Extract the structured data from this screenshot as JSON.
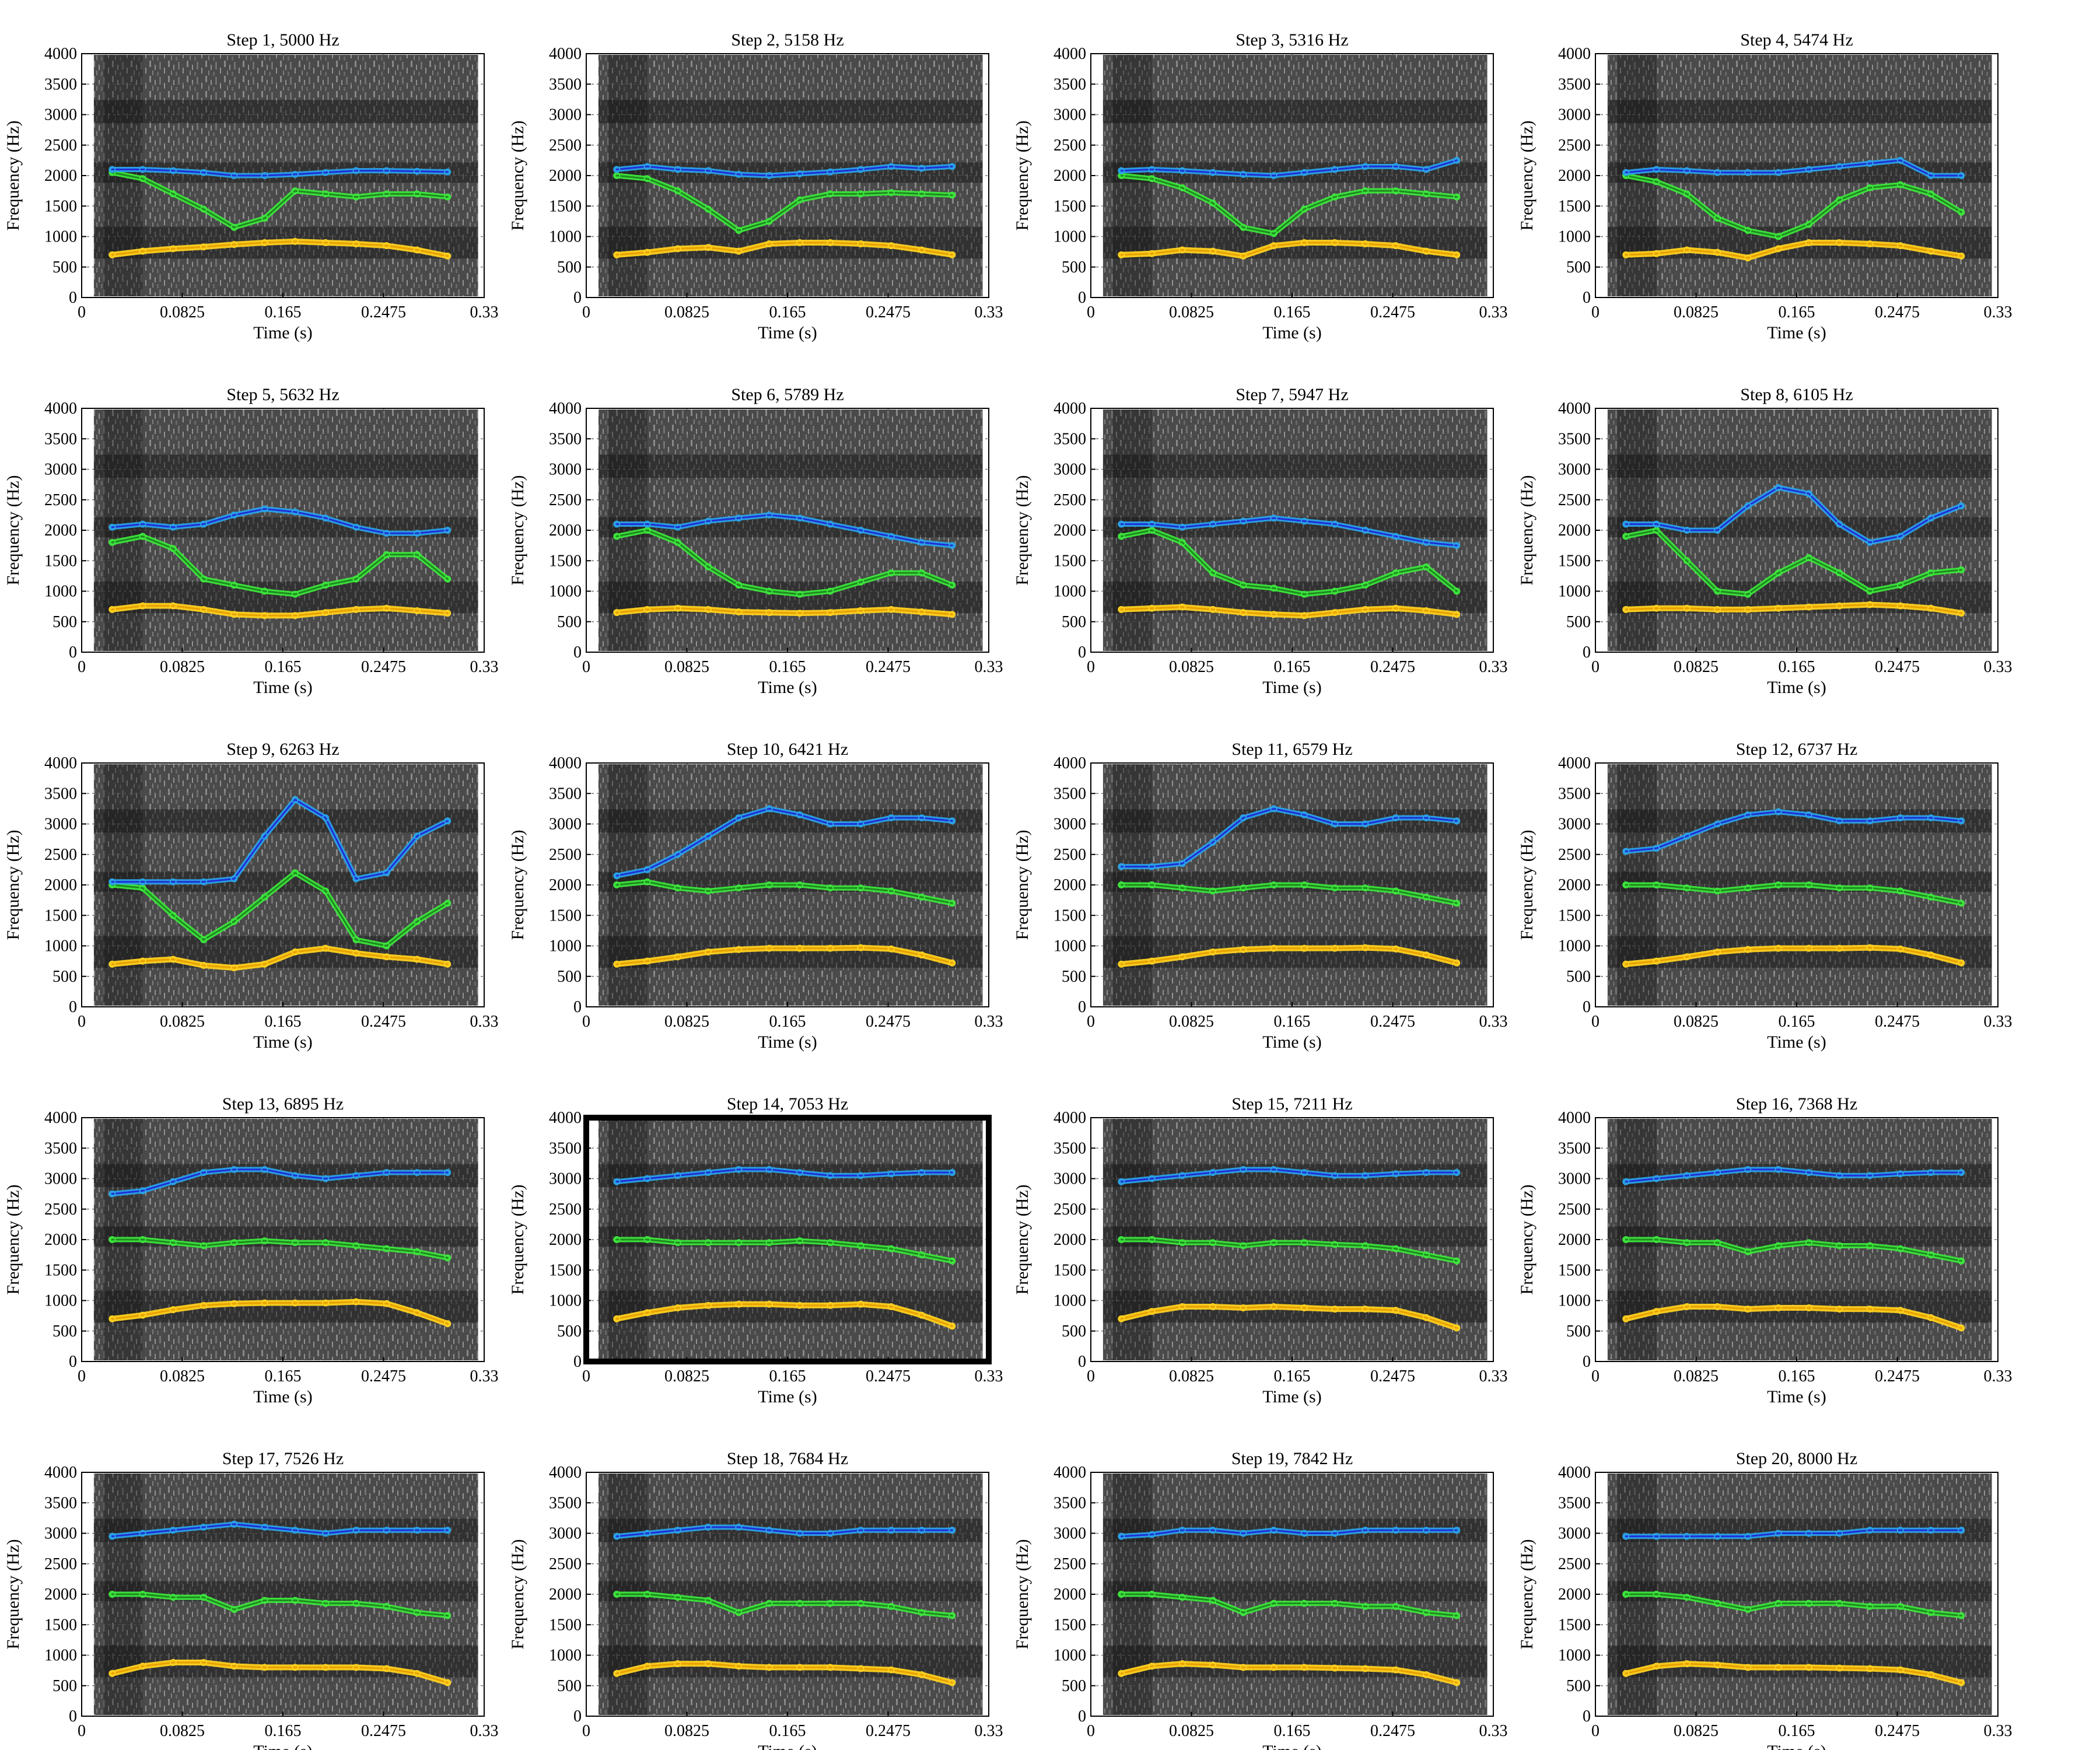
{
  "chart_data": {
    "type": "line",
    "layout": "5 rows x 4 columns of spectrogram panels",
    "xlabel": "Time (s)",
    "ylabel": "Frequency (Hz)",
    "xlim": [
      0,
      0.33
    ],
    "ylim": [
      0,
      4000
    ],
    "xticks": [
      "0",
      "0.0825",
      "0.165",
      "0.2475",
      "0.33"
    ],
    "yticks": [
      "0",
      "500",
      "1000",
      "1500",
      "2000",
      "2500",
      "3000",
      "3500",
      "4000"
    ],
    "grid": true,
    "highlighted_panel": "Step 14, 7053 Hz",
    "colors": {
      "F1": "#ffd21f",
      "F1_fit": "#e8a000",
      "F2": "#3ce83c",
      "F2_fit": "#1f8a1f",
      "F3": "#2aa3e8",
      "F3_fit": "#1f2fd6"
    },
    "panels": [
      {
        "title": "Step 1, 5000 Hz",
        "step": 1,
        "max_frequency_hz": 5000
      },
      {
        "title": "Step 2, 5158 Hz",
        "step": 2,
        "max_frequency_hz": 5158
      },
      {
        "title": "Step 3, 5316 Hz",
        "step": 3,
        "max_frequency_hz": 5316
      },
      {
        "title": "Step 4, 5474 Hz",
        "step": 4,
        "max_frequency_hz": 5474
      },
      {
        "title": "Step 5, 5632 Hz",
        "step": 5,
        "max_frequency_hz": 5632
      },
      {
        "title": "Step 6, 5789 Hz",
        "step": 6,
        "max_frequency_hz": 5789
      },
      {
        "title": "Step 7, 5947 Hz",
        "step": 7,
        "max_frequency_hz": 5947
      },
      {
        "title": "Step 8, 6105 Hz",
        "step": 8,
        "max_frequency_hz": 6105
      },
      {
        "title": "Step 9, 6263 Hz",
        "step": 9,
        "max_frequency_hz": 6263
      },
      {
        "title": "Step 10, 6421 Hz",
        "step": 10,
        "max_frequency_hz": 6421
      },
      {
        "title": "Step 11, 6579 Hz",
        "step": 11,
        "max_frequency_hz": 6579
      },
      {
        "title": "Step 12, 6737 Hz",
        "step": 12,
        "max_frequency_hz": 6737
      },
      {
        "title": "Step 13, 6895 Hz",
        "step": 13,
        "max_frequency_hz": 6895
      },
      {
        "title": "Step 14, 7053 Hz",
        "step": 14,
        "max_frequency_hz": 7053
      },
      {
        "title": "Step 15, 7211 Hz",
        "step": 15,
        "max_frequency_hz": 7211
      },
      {
        "title": "Step 16, 7368 Hz",
        "step": 16,
        "max_frequency_hz": 7368
      },
      {
        "title": "Step 17, 7526 Hz",
        "step": 17,
        "max_frequency_hz": 7526
      },
      {
        "title": "Step 18, 7684 Hz",
        "step": 18,
        "max_frequency_hz": 7684
      },
      {
        "title": "Step 19, 7842 Hz",
        "step": 19,
        "max_frequency_hz": 7842
      },
      {
        "title": "Step 20, 8000 Hz",
        "step": 20,
        "max_frequency_hz": 8000
      }
    ],
    "tracks": {
      "t": [
        0.025,
        0.05,
        0.075,
        0.1,
        0.125,
        0.15,
        0.175,
        0.2,
        0.225,
        0.25,
        0.275,
        0.3
      ],
      "step_1": {
        "F1": [
          700,
          760,
          800,
          830,
          870,
          900,
          920,
          900,
          880,
          850,
          780,
          680
        ],
        "F2": [
          2050,
          1950,
          1700,
          1450,
          1150,
          1300,
          1750,
          1700,
          1650,
          1700,
          1700,
          1650
        ],
        "F3": [
          2100,
          2100,
          2080,
          2050,
          2000,
          2000,
          2020,
          2050,
          2080,
          2080,
          2070,
          2060
        ]
      },
      "step_2": {
        "F1": [
          700,
          740,
          800,
          820,
          760,
          880,
          900,
          900,
          880,
          850,
          780,
          700
        ],
        "F2": [
          2000,
          1950,
          1750,
          1450,
          1100,
          1250,
          1600,
          1700,
          1700,
          1720,
          1700,
          1680
        ],
        "F3": [
          2100,
          2150,
          2100,
          2080,
          2020,
          2000,
          2030,
          2060,
          2100,
          2150,
          2120,
          2150
        ]
      },
      "step_3": {
        "F1": [
          700,
          720,
          780,
          760,
          680,
          850,
          900,
          900,
          880,
          850,
          760,
          700
        ],
        "F2": [
          2000,
          1950,
          1800,
          1550,
          1150,
          1050,
          1450,
          1650,
          1750,
          1750,
          1700,
          1650
        ],
        "F3": [
          2080,
          2100,
          2080,
          2050,
          2020,
          2000,
          2050,
          2100,
          2150,
          2150,
          2100,
          2250
        ]
      },
      "step_4": {
        "F1": [
          700,
          720,
          780,
          740,
          650,
          800,
          900,
          900,
          880,
          850,
          760,
          680
        ],
        "F2": [
          2000,
          1900,
          1700,
          1300,
          1100,
          1000,
          1200,
          1600,
          1800,
          1850,
          1700,
          1400
        ],
        "F3": [
          2050,
          2100,
          2080,
          2050,
          2050,
          2050,
          2100,
          2150,
          2200,
          2250,
          2000,
          2000
        ]
      },
      "step_5": {
        "F1": [
          700,
          760,
          760,
          700,
          620,
          600,
          600,
          650,
          700,
          720,
          680,
          640
        ],
        "F2": [
          1800,
          1900,
          1700,
          1200,
          1100,
          1000,
          950,
          1100,
          1200,
          1600,
          1600,
          1200
        ],
        "F3": [
          2050,
          2100,
          2050,
          2100,
          2250,
          2350,
          2300,
          2200,
          2050,
          1950,
          1950,
          2000
        ]
      },
      "step_6": {
        "F1": [
          650,
          700,
          720,
          700,
          660,
          650,
          640,
          650,
          680,
          700,
          660,
          620
        ],
        "F2": [
          1900,
          2000,
          1800,
          1400,
          1100,
          1000,
          950,
          1000,
          1150,
          1300,
          1300,
          1100
        ],
        "F3": [
          2100,
          2100,
          2050,
          2150,
          2200,
          2250,
          2200,
          2100,
          2000,
          1900,
          1800,
          1750
        ]
      },
      "step_7": {
        "F1": [
          700,
          720,
          740,
          700,
          650,
          620,
          600,
          650,
          700,
          720,
          680,
          620
        ],
        "F2": [
          1900,
          2000,
          1800,
          1300,
          1100,
          1050,
          950,
          1000,
          1100,
          1300,
          1400,
          1000
        ],
        "F3": [
          2100,
          2100,
          2050,
          2100,
          2150,
          2200,
          2150,
          2100,
          2000,
          1900,
          1800,
          1750
        ]
      },
      "step_8": {
        "F1": [
          700,
          720,
          720,
          700,
          700,
          720,
          740,
          760,
          780,
          760,
          720,
          640
        ],
        "F2": [
          1900,
          2000,
          1500,
          1000,
          950,
          1300,
          1550,
          1300,
          1000,
          1100,
          1300,
          1350
        ],
        "F3": [
          2100,
          2100,
          2000,
          2000,
          2400,
          2700,
          2600,
          2100,
          1800,
          1900,
          2200,
          2400
        ]
      },
      "step_9": {
        "F1": [
          700,
          750,
          780,
          680,
          640,
          700,
          900,
          960,
          880,
          820,
          780,
          700
        ],
        "F2": [
          2000,
          1950,
          1500,
          1100,
          1400,
          1800,
          2200,
          1900,
          1100,
          1000,
          1400,
          1700
        ],
        "F3": [
          2050,
          2050,
          2050,
          2050,
          2100,
          2800,
          3400,
          3100,
          2100,
          2200,
          2800,
          3050
        ]
      },
      "step_10": {
        "F1": [
          700,
          750,
          820,
          900,
          940,
          960,
          960,
          960,
          970,
          950,
          850,
          720
        ],
        "F2": [
          2000,
          2050,
          1950,
          1900,
          1950,
          2000,
          2000,
          1950,
          1950,
          1900,
          1800,
          1700
        ],
        "F3": [
          2150,
          2250,
          2500,
          2800,
          3100,
          3250,
          3150,
          3000,
          3000,
          3100,
          3100,
          3050
        ]
      },
      "step_11": {
        "F1": [
          700,
          750,
          820,
          900,
          940,
          960,
          960,
          960,
          970,
          950,
          850,
          720
        ],
        "F2": [
          2000,
          2000,
          1950,
          1900,
          1950,
          2000,
          2000,
          1950,
          1950,
          1900,
          1800,
          1700
        ],
        "F3": [
          2300,
          2300,
          2350,
          2700,
          3100,
          3250,
          3150,
          3000,
          3000,
          3100,
          3100,
          3050
        ]
      },
      "step_12": {
        "F1": [
          700,
          750,
          820,
          900,
          940,
          960,
          960,
          960,
          970,
          950,
          850,
          720
        ],
        "F2": [
          2000,
          2000,
          1950,
          1900,
          1950,
          2000,
          2000,
          1950,
          1950,
          1900,
          1800,
          1700
        ],
        "F3": [
          2550,
          2600,
          2800,
          3000,
          3150,
          3200,
          3150,
          3050,
          3050,
          3100,
          3100,
          3050
        ]
      },
      "step_13": {
        "F1": [
          700,
          760,
          850,
          920,
          950,
          960,
          960,
          960,
          980,
          950,
          800,
          620
        ],
        "F2": [
          2000,
          2000,
          1950,
          1900,
          1950,
          1980,
          1950,
          1950,
          1900,
          1850,
          1800,
          1700
        ],
        "F3": [
          2750,
          2800,
          2950,
          3100,
          3150,
          3150,
          3050,
          3000,
          3050,
          3100,
          3100,
          3100
        ]
      },
      "step_14": {
        "F1": [
          700,
          800,
          880,
          920,
          940,
          940,
          920,
          920,
          940,
          900,
          760,
          580
        ],
        "F2": [
          2000,
          2000,
          1950,
          1950,
          1950,
          1950,
          1980,
          1950,
          1900,
          1850,
          1750,
          1650
        ],
        "F3": [
          2950,
          3000,
          3050,
          3100,
          3150,
          3150,
          3100,
          3050,
          3050,
          3080,
          3100,
          3100
        ]
      },
      "step_15": {
        "F1": [
          700,
          820,
          900,
          900,
          880,
          900,
          880,
          860,
          860,
          840,
          720,
          550
        ],
        "F2": [
          2000,
          2000,
          1950,
          1950,
          1900,
          1950,
          1950,
          1920,
          1900,
          1850,
          1750,
          1650
        ],
        "F3": [
          2950,
          3000,
          3050,
          3100,
          3150,
          3150,
          3100,
          3050,
          3050,
          3080,
          3100,
          3100
        ]
      },
      "step_16": {
        "F1": [
          700,
          820,
          900,
          900,
          860,
          880,
          880,
          860,
          860,
          840,
          720,
          550
        ],
        "F2": [
          2000,
          2000,
          1950,
          1950,
          1800,
          1900,
          1950,
          1900,
          1900,
          1850,
          1750,
          1650
        ],
        "F3": [
          2950,
          3000,
          3050,
          3100,
          3150,
          3150,
          3100,
          3050,
          3050,
          3080,
          3100,
          3100
        ]
      },
      "step_17": {
        "F1": [
          700,
          820,
          880,
          880,
          820,
          800,
          800,
          800,
          800,
          780,
          700,
          550
        ],
        "F2": [
          2000,
          2000,
          1950,
          1950,
          1750,
          1900,
          1900,
          1850,
          1850,
          1800,
          1700,
          1650
        ],
        "F3": [
          2950,
          3000,
          3050,
          3100,
          3150,
          3100,
          3050,
          3000,
          3050,
          3050,
          3050,
          3050
        ]
      },
      "step_18": {
        "F1": [
          700,
          820,
          860,
          860,
          820,
          800,
          800,
          800,
          780,
          760,
          680,
          550
        ],
        "F2": [
          2000,
          2000,
          1950,
          1900,
          1700,
          1850,
          1850,
          1850,
          1850,
          1800,
          1700,
          1650
        ],
        "F3": [
          2950,
          3000,
          3050,
          3100,
          3100,
          3050,
          3000,
          3000,
          3050,
          3050,
          3050,
          3050
        ]
      },
      "step_19": {
        "F1": [
          700,
          820,
          860,
          840,
          800,
          800,
          800,
          790,
          780,
          760,
          680,
          550
        ],
        "F2": [
          2000,
          2000,
          1950,
          1900,
          1700,
          1850,
          1850,
          1850,
          1800,
          1800,
          1700,
          1650
        ],
        "F3": [
          2950,
          2980,
          3050,
          3050,
          3000,
          3050,
          3000,
          3000,
          3050,
          3050,
          3050,
          3050
        ]
      },
      "step_20": {
        "F1": [
          700,
          820,
          860,
          840,
          800,
          800,
          800,
          790,
          780,
          760,
          680,
          550
        ],
        "F2": [
          2000,
          2000,
          1950,
          1850,
          1750,
          1850,
          1850,
          1850,
          1800,
          1800,
          1700,
          1650
        ],
        "F3": [
          2950,
          2950,
          2950,
          2950,
          2950,
          3000,
          3000,
          3000,
          3050,
          3050,
          3050,
          3050
        ]
      }
    }
  }
}
